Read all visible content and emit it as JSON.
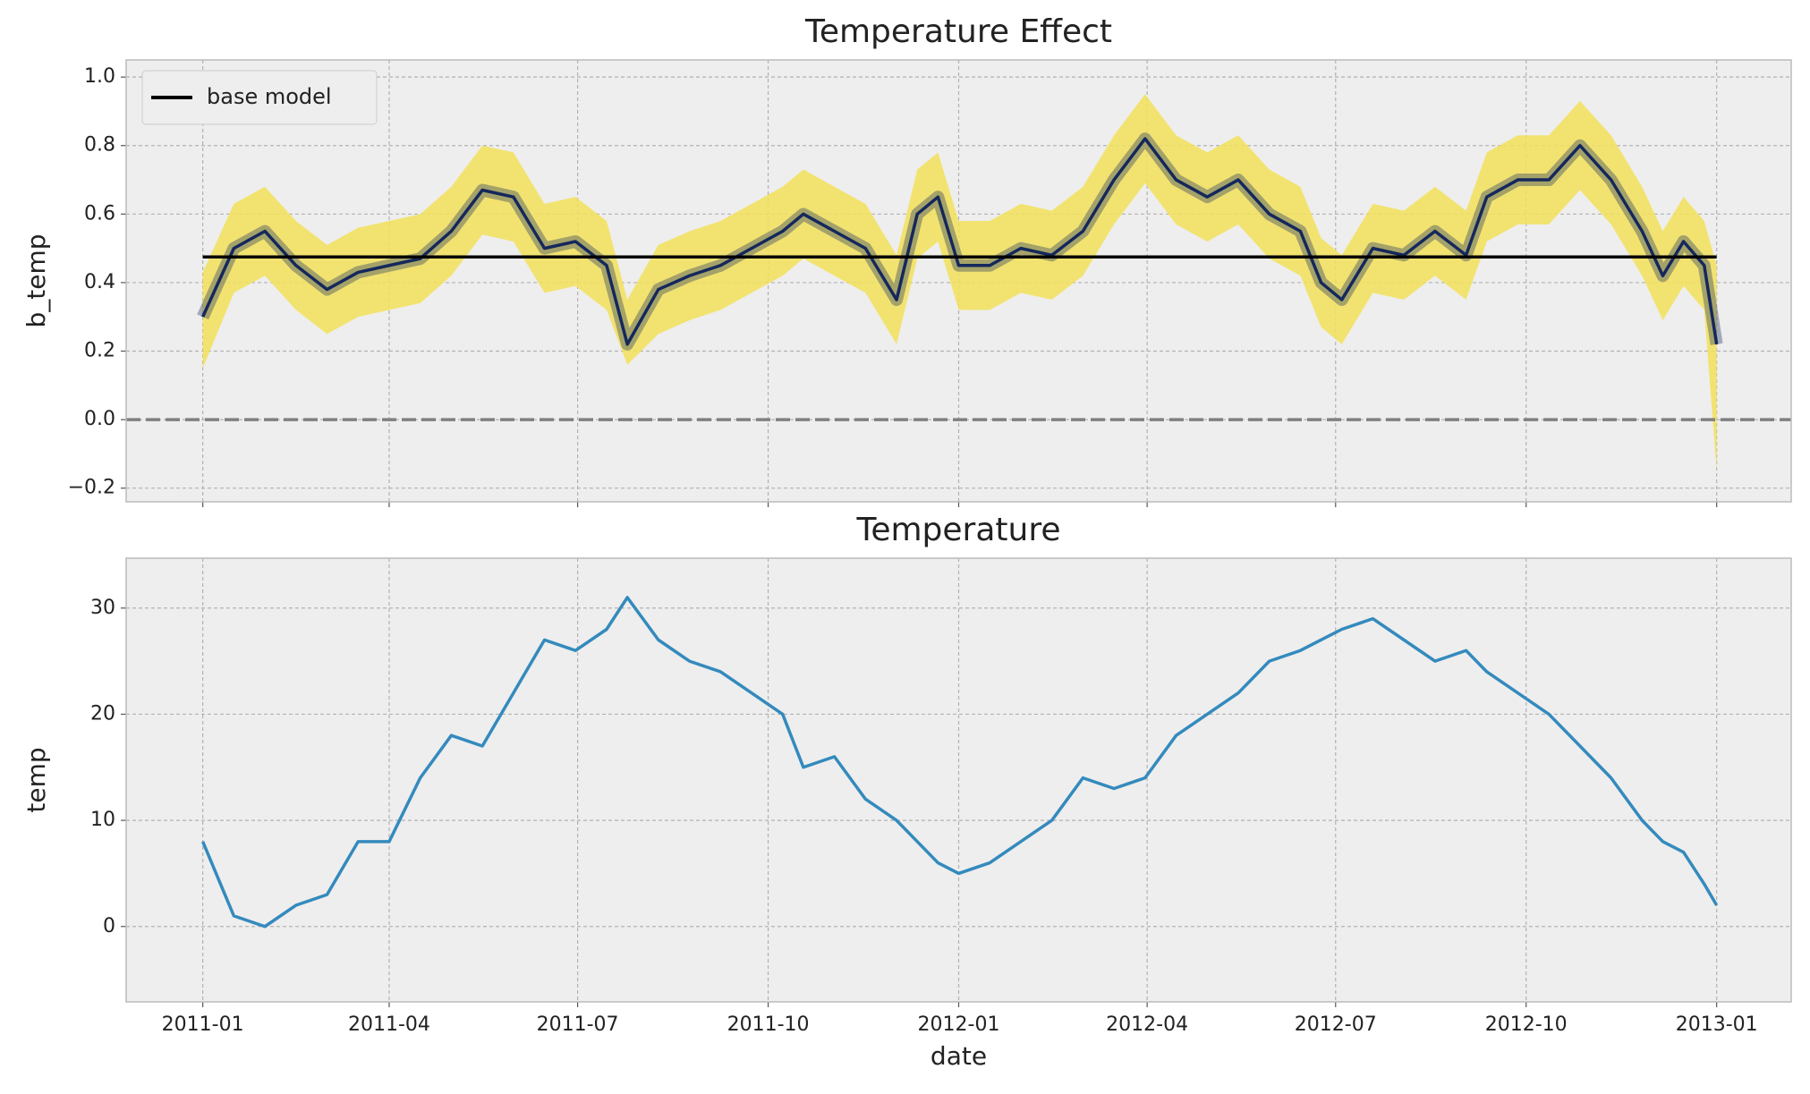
{
  "chart_data": [
    {
      "type": "line",
      "title": "Temperature Effect",
      "y_label": "b_temp",
      "legend": "upper left",
      "grid": true,
      "reference_line": 0,
      "x": [
        0,
        15,
        30,
        45,
        60,
        75,
        90,
        105,
        120,
        135,
        150,
        165,
        180,
        195,
        205,
        220,
        235,
        250,
        265,
        280,
        290,
        305,
        320,
        335,
        345,
        355,
        365,
        380,
        395,
        410,
        425,
        440,
        455,
        470,
        485,
        500,
        515,
        530,
        540,
        550,
        565,
        580,
        595,
        610,
        620,
        635,
        650,
        665,
        680,
        695,
        705,
        715,
        725,
        731
      ],
      "band": {
        "color": "#f2e05a",
        "upper": [
          0.43,
          0.63,
          0.68,
          0.58,
          0.51,
          0.56,
          0.58,
          0.6,
          0.68,
          0.8,
          0.78,
          0.63,
          0.65,
          0.58,
          0.35,
          0.51,
          0.55,
          0.58,
          0.63,
          0.68,
          0.73,
          0.68,
          0.63,
          0.48,
          0.73,
          0.78,
          0.58,
          0.58,
          0.63,
          0.61,
          0.68,
          0.83,
          0.95,
          0.83,
          0.78,
          0.83,
          0.73,
          0.68,
          0.53,
          0.48,
          0.63,
          0.61,
          0.68,
          0.61,
          0.78,
          0.83,
          0.83,
          0.93,
          0.83,
          0.68,
          0.55,
          0.65,
          0.58,
          0.45
        ],
        "lower": [
          0.15,
          0.37,
          0.42,
          0.32,
          0.25,
          0.3,
          0.32,
          0.34,
          0.42,
          0.54,
          0.52,
          0.37,
          0.39,
          0.32,
          0.16,
          0.25,
          0.29,
          0.32,
          0.37,
          0.42,
          0.47,
          0.42,
          0.37,
          0.22,
          0.47,
          0.52,
          0.32,
          0.32,
          0.37,
          0.35,
          0.42,
          0.57,
          0.69,
          0.57,
          0.52,
          0.57,
          0.47,
          0.42,
          0.27,
          0.22,
          0.37,
          0.35,
          0.42,
          0.35,
          0.52,
          0.57,
          0.57,
          0.67,
          0.57,
          0.42,
          0.29,
          0.39,
          0.32,
          -0.15
        ]
      },
      "series": [
        {
          "color": "#14285c",
          "values": [
            0.3,
            0.5,
            0.55,
            0.45,
            0.38,
            0.43,
            0.45,
            0.47,
            0.55,
            0.67,
            0.65,
            0.5,
            0.52,
            0.45,
            0.22,
            0.38,
            0.42,
            0.45,
            0.5,
            0.55,
            0.6,
            0.55,
            0.5,
            0.35,
            0.6,
            0.65,
            0.45,
            0.45,
            0.5,
            0.48,
            0.55,
            0.7,
            0.82,
            0.7,
            0.65,
            0.7,
            0.6,
            0.55,
            0.4,
            0.35,
            0.5,
            0.48,
            0.55,
            0.48,
            0.65,
            0.7,
            0.7,
            0.8,
            0.7,
            0.55,
            0.42,
            0.52,
            0.45,
            0.22
          ]
        },
        {
          "name": "base model",
          "color": "#000000",
          "x": [
            0,
            731
          ],
          "values": [
            0.475,
            0.475
          ]
        }
      ],
      "xlim": [
        -37,
        767
      ],
      "ylim": [
        -0.24,
        1.05
      ],
      "yticks": [
        {
          "value": -0.2,
          "label": "−0.2"
        },
        {
          "value": 0,
          "label": "0.0"
        },
        0.2,
        0.4,
        0.6,
        0.8,
        {
          "value": 1,
          "label": "1.0"
        }
      ]
    },
    {
      "type": "line",
      "title": "Temperature",
      "x_label": "date",
      "y_label": "temp",
      "grid": true,
      "x": [
        0,
        15,
        30,
        45,
        60,
        75,
        90,
        105,
        120,
        135,
        150,
        165,
        180,
        195,
        205,
        220,
        235,
        250,
        265,
        280,
        290,
        305,
        320,
        335,
        345,
        355,
        365,
        380,
        395,
        410,
        425,
        440,
        455,
        470,
        485,
        500,
        515,
        530,
        540,
        550,
        565,
        580,
        595,
        610,
        620,
        635,
        650,
        665,
        680,
        695,
        705,
        715,
        725,
        731
      ],
      "series": [
        {
          "color": "#348abd",
          "values": [
            8,
            1,
            0,
            2,
            3,
            8,
            8,
            14,
            18,
            17,
            22,
            27,
            26,
            28,
            31,
            27,
            25,
            24,
            22,
            20,
            15,
            16,
            12,
            10,
            8,
            6,
            5,
            6,
            8,
            10,
            14,
            13,
            14,
            18,
            20,
            22,
            25,
            26,
            27,
            28,
            29,
            27,
            25,
            26,
            24,
            22,
            20,
            17,
            14,
            10,
            8,
            7,
            4,
            2
          ]
        }
      ],
      "xlim": [
        -37,
        767
      ],
      "xticks": [
        {
          "value": 0,
          "label": "2011-01"
        },
        {
          "value": 90,
          "label": "2011-04"
        },
        {
          "value": 181,
          "label": "2011-07"
        },
        {
          "value": 273,
          "label": "2011-10"
        },
        {
          "value": 365,
          "label": "2012-01"
        },
        {
          "value": 456,
          "label": "2012-04"
        },
        {
          "value": 547,
          "label": "2012-07"
        },
        {
          "value": 639,
          "label": "2012-10"
        },
        {
          "value": 731,
          "label": "2013-01"
        }
      ],
      "ylim": [
        -7.1,
        34.7
      ],
      "yticks": [
        0,
        10,
        20,
        30
      ]
    }
  ]
}
